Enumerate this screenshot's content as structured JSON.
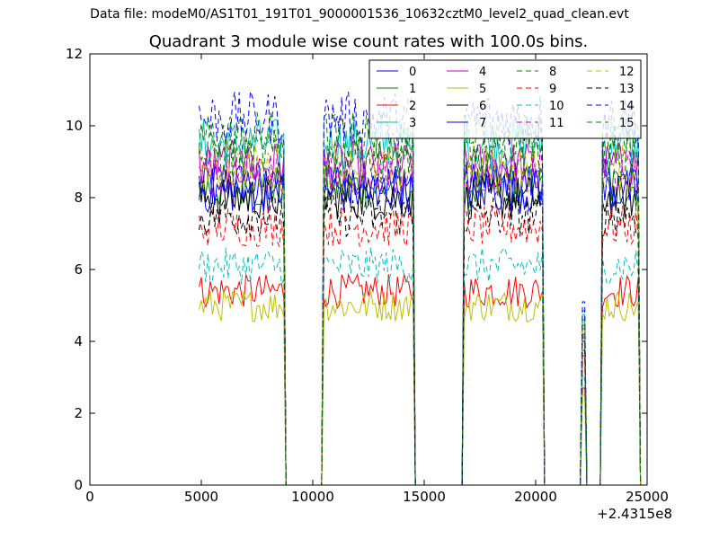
{
  "figure": {
    "suptitle": "Data file: modeM0/AS1T01_191T01_9000001536_10632cztM0_level2_quad_clean.evt",
    "title": "Quadrant 3 module wise count rates with 100.0s bins.",
    "x_offset_label": "+2.4315e8"
  },
  "chart_data": {
    "type": "line",
    "title": "Quadrant 3 module wise count rates with 100.0s bins.",
    "xlabel": "",
    "ylabel": "",
    "x_offset": 243150000,
    "xlim": [
      0,
      25000
    ],
    "ylim": [
      0,
      12
    ],
    "xticks": [
      0,
      5000,
      10000,
      15000,
      20000,
      25000
    ],
    "yticks": [
      0,
      2,
      4,
      6,
      8,
      10,
      12
    ],
    "grid": false,
    "legend": {
      "placement": "top-right",
      "columns": 4
    },
    "segments": [
      [
        4900,
        8700
      ],
      [
        10500,
        14500
      ],
      [
        16800,
        20300
      ],
      [
        22100,
        22200
      ],
      [
        23000,
        24600
      ]
    ],
    "gap_points": [
      [
        8800,
        10400
      ],
      [
        14600,
        16700
      ],
      [
        20400,
        22000
      ],
      [
        22300,
        22900
      ]
    ],
    "series": [
      {
        "name": "0",
        "color": "#0000ff",
        "style": "solid",
        "level": 8.4
      },
      {
        "name": "1",
        "color": "#008000",
        "style": "solid",
        "level": 8.3
      },
      {
        "name": "2",
        "color": "#ff0000",
        "style": "solid",
        "level": 5.4
      },
      {
        "name": "3",
        "color": "#00bfbf",
        "style": "solid",
        "level": 9.5
      },
      {
        "name": "4",
        "color": "#bf00bf",
        "style": "solid",
        "level": 8.9
      },
      {
        "name": "5",
        "color": "#bfbf00",
        "style": "solid",
        "level": 5.0
      },
      {
        "name": "6",
        "color": "#000000",
        "style": "solid",
        "level": 8.0
      },
      {
        "name": "7",
        "color": "#0000ff",
        "style": "solid",
        "level": 8.2
      },
      {
        "name": "8",
        "color": "#008000",
        "style": "dashed",
        "level": 9.7
      },
      {
        "name": "9",
        "color": "#ff0000",
        "style": "dashed",
        "level": 7.2
      },
      {
        "name": "10",
        "color": "#00bfbf",
        "style": "dashed",
        "level": 6.1
      },
      {
        "name": "11",
        "color": "#bf00bf",
        "style": "dashed",
        "level": 8.7
      },
      {
        "name": "12",
        "color": "#bfbf00",
        "style": "dashed",
        "level": 8.8
      },
      {
        "name": "13",
        "color": "#000000",
        "style": "dashed",
        "level": 7.5
      },
      {
        "name": "14",
        "color": "#0000ff",
        "style": "dashed",
        "level": 10.2
      },
      {
        "name": "15",
        "color": "#008000",
        "style": "dashed",
        "level": 9.2
      }
    ]
  }
}
